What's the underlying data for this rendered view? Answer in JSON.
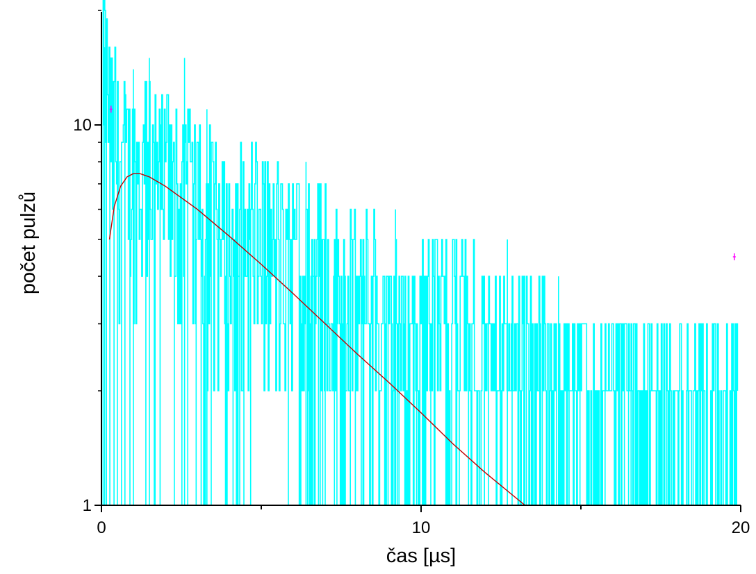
{
  "chart_data": {
    "type": "line",
    "title": "",
    "xlabel": "čas [µs]",
    "ylabel": "počet pulzů",
    "x_scale": "linear",
    "y_scale": "log",
    "xlim": [
      0,
      20
    ],
    "ylim": [
      1,
      20
    ],
    "x_ticks": [
      {
        "value": 0,
        "label": "0"
      },
      {
        "value": 10,
        "label": "10"
      },
      {
        "value": 20,
        "label": "20"
      }
    ],
    "x_minor_ticks": [
      5,
      15
    ],
    "y_ticks": [
      {
        "value": 1,
        "label": "1"
      },
      {
        "value": 10,
        "label": "10"
      }
    ],
    "grid": false,
    "legend": "none",
    "series": [
      {
        "kind": "histogram",
        "color": "#00ffff",
        "x_range": [
          0,
          19.9
        ],
        "envelope": {
          "x": [
            0,
            0.15,
            0.3,
            0.5,
            1.0,
            2.0,
            3.0,
            4.0,
            5.0,
            6.0,
            7.0,
            8.0,
            9.0,
            10.0,
            11.0,
            12.0,
            13.0,
            14.0,
            15.0,
            16.0,
            17.0,
            18.0,
            19.0,
            19.9
          ],
          "y": [
            19,
            14,
            10,
            9,
            8,
            7,
            6,
            5,
            5,
            4,
            4,
            3.5,
            3,
            3,
            3,
            2.5,
            2.5,
            2,
            2,
            2,
            2,
            1.5,
            1.5,
            1.5
          ]
        },
        "peaks": [
          {
            "x": 0.05,
            "y": 20
          },
          {
            "x": 0.1,
            "y": 16
          },
          {
            "x": 1.0,
            "y": 14
          },
          {
            "x": 1.5,
            "y": 15
          },
          {
            "x": 2.6,
            "y": 15
          },
          {
            "x": 3.3,
            "y": 11
          },
          {
            "x": 6.4,
            "y": 8
          },
          {
            "x": 9.2,
            "y": 6
          },
          {
            "x": 12.7,
            "y": 5
          },
          {
            "x": 14.3,
            "y": 4
          },
          {
            "x": 16.1,
            "y": 3
          },
          {
            "x": 19.3,
            "y": 3
          }
        ]
      },
      {
        "kind": "fit",
        "color": "#c00000",
        "x": [
          0.25,
          0.4,
          0.6,
          0.8,
          1.0,
          1.2,
          1.5,
          2.0,
          3.0,
          4.0,
          5.0,
          6.0,
          7.0,
          8.0,
          9.0,
          10.0,
          11.0,
          12.0,
          13.25
        ],
        "y": [
          5.0,
          6.1,
          6.9,
          7.3,
          7.45,
          7.45,
          7.3,
          6.9,
          6.0,
          5.1,
          4.3,
          3.6,
          3.0,
          2.5,
          2.1,
          1.75,
          1.45,
          1.22,
          1.0
        ]
      },
      {
        "kind": "markers",
        "color": "#ff00ff",
        "x": [
          0.3,
          19.8
        ],
        "y": [
          11,
          4.5
        ]
      }
    ]
  }
}
